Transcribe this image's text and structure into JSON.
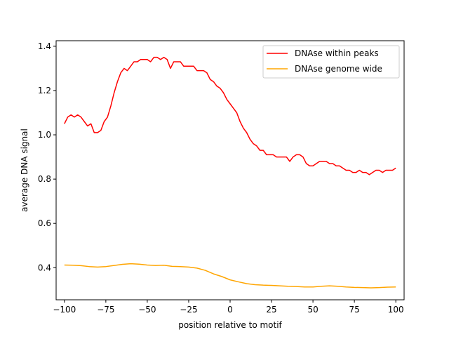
{
  "chart_data": {
    "type": "line",
    "xlabel": "position relative to motif",
    "ylabel": "average DNA signal",
    "xlim": [
      -105,
      105
    ],
    "ylim": [
      0.255,
      1.425
    ],
    "xticks": [
      -100,
      -75,
      -50,
      -25,
      0,
      25,
      50,
      75,
      100
    ],
    "xtick_labels": [
      "−100",
      "−75",
      "−50",
      "−25",
      "0",
      "25",
      "50",
      "75",
      "100"
    ],
    "yticks": [
      0.4,
      0.6,
      0.8,
      1.0,
      1.2,
      1.4
    ],
    "ytick_labels": [
      "0.4",
      "0.6",
      "0.8",
      "1.0",
      "1.2",
      "1.4"
    ],
    "grid": false,
    "legend_position": "top-right",
    "series": [
      {
        "name": "DNAse within peaks",
        "color": "#ff0000",
        "x": [
          -100,
          -98,
          -96,
          -94,
          -92,
          -90,
          -88,
          -86,
          -84,
          -82,
          -80,
          -78,
          -76,
          -74,
          -72,
          -70,
          -68,
          -66,
          -64,
          -62,
          -60,
          -58,
          -56,
          -54,
          -52,
          -50,
          -48,
          -46,
          -44,
          -42,
          -40,
          -38,
          -36,
          -34,
          -32,
          -30,
          -28,
          -26,
          -24,
          -22,
          -20,
          -18,
          -16,
          -14,
          -12,
          -10,
          -8,
          -6,
          -4,
          -2,
          0,
          2,
          4,
          6,
          8,
          10,
          12,
          14,
          16,
          18,
          20,
          22,
          24,
          26,
          28,
          30,
          32,
          34,
          36,
          38,
          40,
          42,
          44,
          46,
          48,
          50,
          52,
          54,
          56,
          58,
          60,
          62,
          64,
          66,
          68,
          70,
          72,
          74,
          76,
          78,
          80,
          82,
          84,
          86,
          88,
          90,
          92,
          94,
          96,
          98,
          100
        ],
        "values": [
          1.05,
          1.08,
          1.09,
          1.08,
          1.09,
          1.08,
          1.06,
          1.04,
          1.05,
          1.01,
          1.01,
          1.02,
          1.06,
          1.08,
          1.13,
          1.19,
          1.24,
          1.28,
          1.3,
          1.29,
          1.31,
          1.33,
          1.33,
          1.34,
          1.34,
          1.34,
          1.33,
          1.35,
          1.35,
          1.34,
          1.35,
          1.34,
          1.3,
          1.33,
          1.33,
          1.33,
          1.31,
          1.31,
          1.31,
          1.31,
          1.29,
          1.29,
          1.29,
          1.28,
          1.25,
          1.24,
          1.22,
          1.21,
          1.19,
          1.16,
          1.14,
          1.12,
          1.1,
          1.06,
          1.03,
          1.01,
          0.98,
          0.96,
          0.95,
          0.93,
          0.93,
          0.91,
          0.91,
          0.91,
          0.9,
          0.9,
          0.9,
          0.9,
          0.88,
          0.9,
          0.91,
          0.91,
          0.9,
          0.87,
          0.86,
          0.86,
          0.87,
          0.88,
          0.88,
          0.88,
          0.87,
          0.87,
          0.86,
          0.86,
          0.85,
          0.84,
          0.84,
          0.83,
          0.83,
          0.84,
          0.83,
          0.83,
          0.82,
          0.83,
          0.84,
          0.84,
          0.83,
          0.84,
          0.84,
          0.84,
          0.85
        ]
      },
      {
        "name": "DNAse genome wide",
        "color": "#ffa500",
        "x": [
          -100,
          -95,
          -90,
          -85,
          -80,
          -75,
          -70,
          -65,
          -60,
          -55,
          -50,
          -45,
          -40,
          -35,
          -30,
          -25,
          -20,
          -15,
          -10,
          -5,
          0,
          5,
          10,
          15,
          20,
          25,
          30,
          35,
          40,
          45,
          50,
          55,
          60,
          65,
          70,
          75,
          80,
          85,
          90,
          95,
          100
        ],
        "values": [
          0.412,
          0.411,
          0.409,
          0.405,
          0.403,
          0.405,
          0.41,
          0.415,
          0.418,
          0.416,
          0.412,
          0.41,
          0.411,
          0.406,
          0.405,
          0.403,
          0.398,
          0.388,
          0.372,
          0.36,
          0.345,
          0.336,
          0.328,
          0.323,
          0.321,
          0.32,
          0.318,
          0.316,
          0.315,
          0.313,
          0.313,
          0.316,
          0.318,
          0.316,
          0.313,
          0.311,
          0.31,
          0.309,
          0.31,
          0.312,
          0.313
        ]
      }
    ]
  }
}
